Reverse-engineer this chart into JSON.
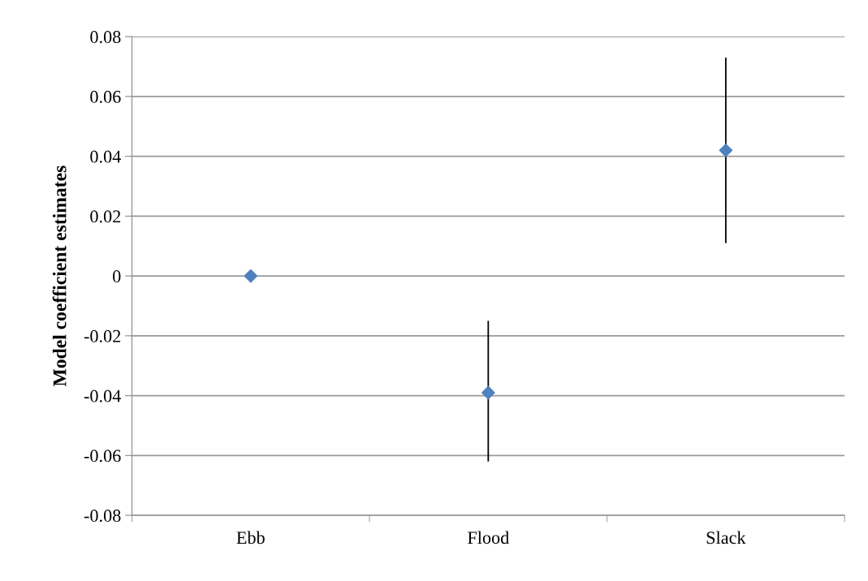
{
  "chart_data": {
    "type": "scatter",
    "ylabel": "Model coefficient estimates",
    "categories": [
      "Ebb",
      "Flood",
      "Slack"
    ],
    "values": [
      0,
      -0.039,
      0.042
    ],
    "errors": [
      null,
      [
        -0.062,
        -0.015
      ],
      [
        0.011,
        0.073
      ]
    ],
    "color": "#4f81bd",
    "marker": "diamond",
    "ylim": [
      -0.08,
      0.08
    ],
    "yticks": [
      -0.08,
      -0.06,
      -0.04,
      -0.02,
      0,
      0.02,
      0.04,
      0.06,
      0.08
    ],
    "grid": "y",
    "legend": false
  }
}
